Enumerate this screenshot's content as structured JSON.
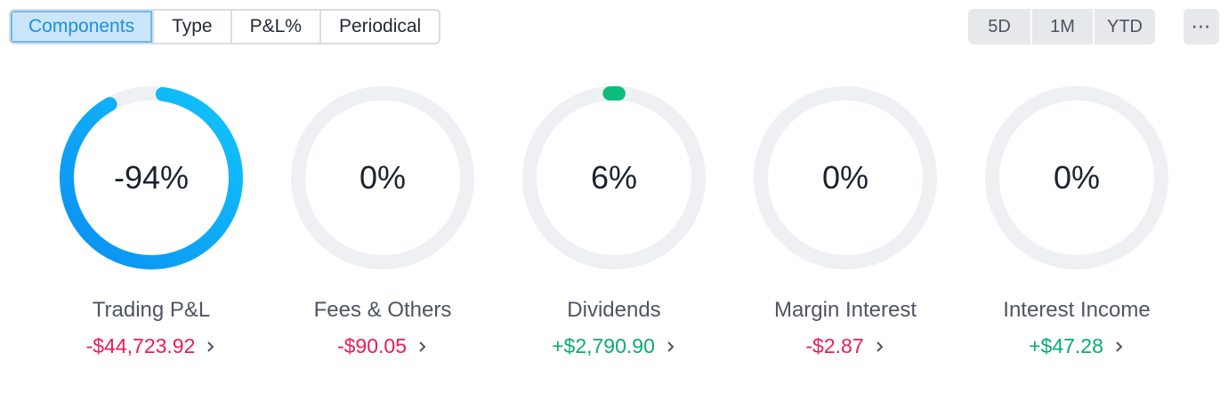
{
  "tabs": [
    {
      "label": "Components",
      "active": true
    },
    {
      "label": "Type",
      "active": false
    },
    {
      "label": "P&L%",
      "active": false
    },
    {
      "label": "Periodical",
      "active": false
    }
  ],
  "ranges": [
    "5D",
    "1M",
    "YTD"
  ],
  "more_icon": "ellipsis-icon",
  "colors": {
    "negative": "#eb1c56",
    "positive": "#0aaa73",
    "ring_track": "#eff0f4",
    "ring_blue_start": "#0a8ff2",
    "ring_blue_end": "#12c4fb",
    "ring_green": "#0dbd7e"
  },
  "components": [
    {
      "label": "Trading P&L",
      "percent_text": "-94%",
      "share": 0.94,
      "value": "-$44,723.92",
      "sign": "neg",
      "ring_color": "blue"
    },
    {
      "label": "Fees & Others",
      "percent_text": "0%",
      "share": 0.0,
      "value": "-$90.05",
      "sign": "neg",
      "ring_color": "none"
    },
    {
      "label": "Dividends",
      "percent_text": "6%",
      "share": 0.06,
      "value": "+$2,790.90",
      "sign": "pos",
      "ring_color": "green"
    },
    {
      "label": "Margin Interest",
      "percent_text": "0%",
      "share": 0.0,
      "value": "-$2.87",
      "sign": "neg",
      "ring_color": "none"
    },
    {
      "label": "Interest Income",
      "percent_text": "0%",
      "share": 0.0,
      "value": "+$47.28",
      "sign": "pos",
      "ring_color": "none"
    }
  ]
}
